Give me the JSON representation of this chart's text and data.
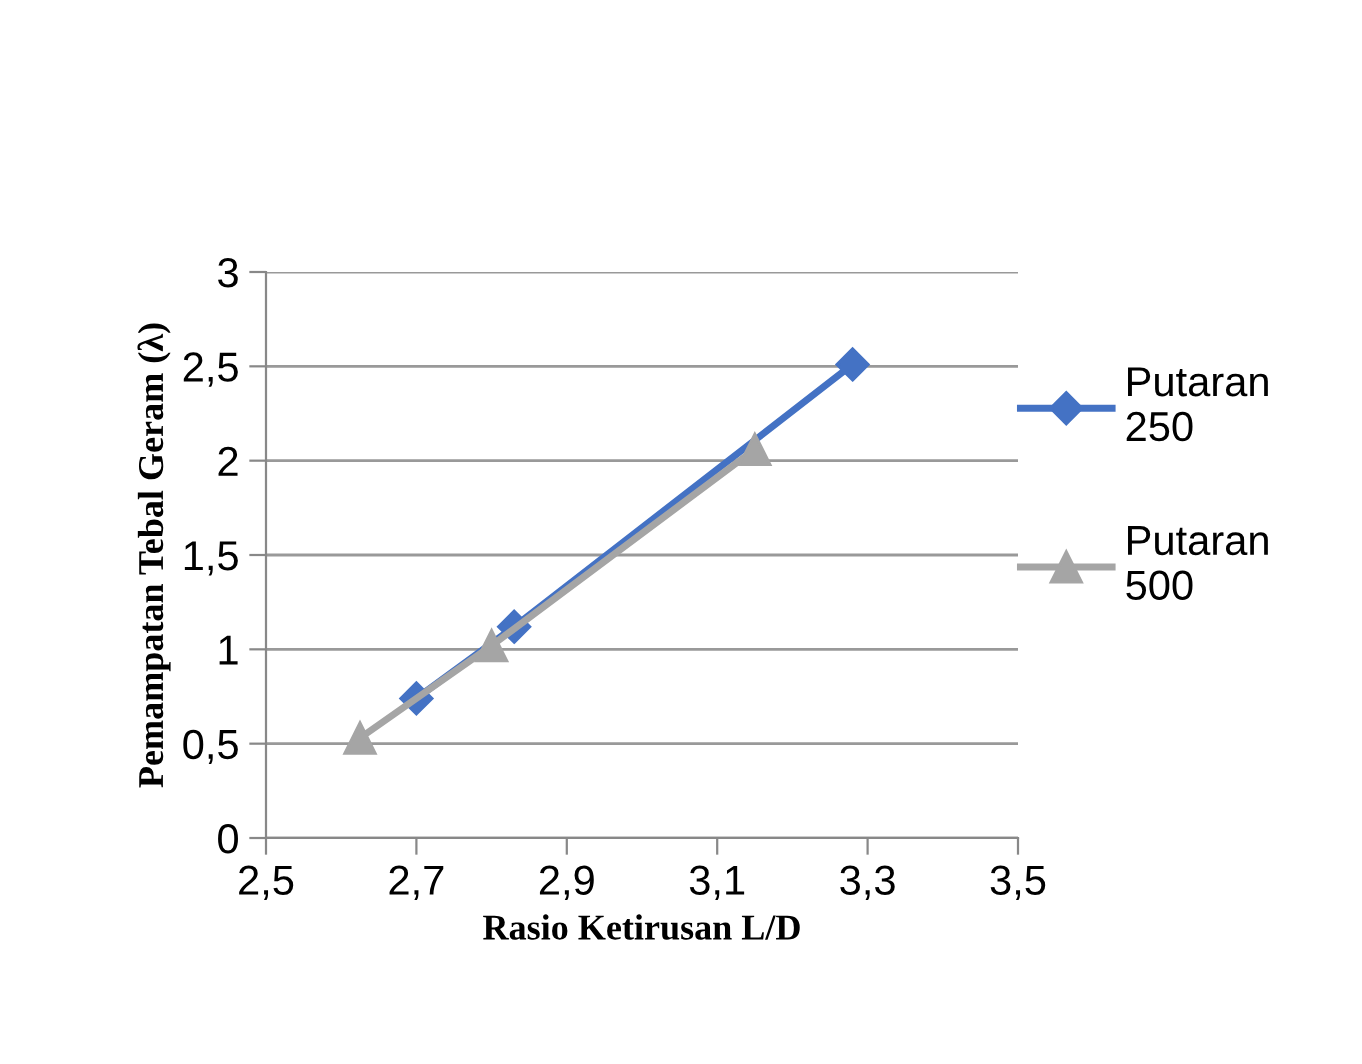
{
  "chart_data": {
    "type": "line",
    "xlabel": "Rasio Ketirusan L/D",
    "ylabel": "Pemampatan Tebal Geram (λ)",
    "series": [
      {
        "name": "Putaran 250",
        "color": "#4472c4",
        "marker": "diamond",
        "x": [
          2.7,
          2.83,
          3.28
        ],
        "values": [
          0.74,
          1.12,
          2.51
        ]
      },
      {
        "name": "Putaran 500",
        "color": "#a5a5a5",
        "marker": "triangle",
        "x": [
          2.625,
          2.8,
          3.15
        ],
        "values": [
          0.53,
          1.02,
          2.06
        ]
      }
    ],
    "xlim": [
      2.5,
      3.5
    ],
    "xticks": [
      {
        "value": 2.5,
        "label": "2,5"
      },
      {
        "value": 2.7,
        "label": "2,7"
      },
      {
        "value": 2.9,
        "label": "2,9"
      },
      {
        "value": 3.1,
        "label": "3,1"
      },
      {
        "value": 3.3,
        "label": "3,3"
      },
      {
        "value": 3.5,
        "label": "3,5"
      }
    ],
    "ylim": [
      0,
      3
    ],
    "yticks": [
      0,
      {
        "value": 0.5,
        "label": "0,5"
      },
      1,
      {
        "value": 1.5,
        "label": "1,5"
      },
      2,
      {
        "value": 2.5,
        "label": "2,5"
      },
      3
    ],
    "grid": "y",
    "legend": "right"
  }
}
